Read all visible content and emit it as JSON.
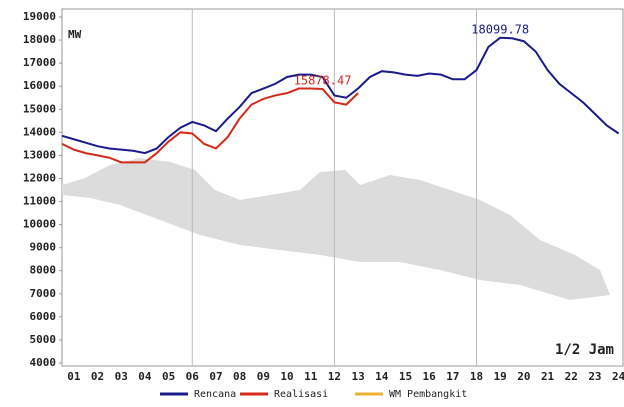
{
  "chart_data": {
    "type": "line",
    "y_label": "MW",
    "x_note": "1/2 Jam",
    "x": [
      0.5,
      1,
      1.5,
      2,
      2.5,
      3,
      3.5,
      4,
      4.5,
      5,
      5.5,
      6,
      6.5,
      7,
      7.5,
      8,
      8.5,
      9,
      9.5,
      10,
      10.5,
      11,
      11.5,
      12,
      12.5,
      13,
      13.5,
      14,
      14.5,
      15,
      15.5,
      16,
      16.5,
      17,
      17.5,
      18,
      18.5,
      19,
      19.5,
      20,
      20.5,
      21,
      21.5,
      22,
      22.5,
      23,
      23.5,
      24
    ],
    "series": [
      {
        "name": "Rencana",
        "color": "#1a1a8c",
        "values": [
          13850,
          13700,
          13550,
          13400,
          13300,
          13250,
          13200,
          13100,
          13300,
          13800,
          14200,
          14450,
          14300,
          14050,
          14600,
          15100,
          15700,
          15900,
          16100,
          16400,
          16500,
          16500,
          16400,
          15600,
          15500,
          15900,
          16400,
          16650,
          16600,
          16500,
          16450,
          16550,
          16500,
          16300,
          16300,
          16700,
          17700,
          18100,
          18080,
          17950,
          17500,
          16700,
          16100,
          15700,
          15300,
          14800,
          14300,
          13950
        ]
      },
      {
        "name": "Realisasi",
        "color": "#d42a1a",
        "values": [
          13500,
          13250,
          13100,
          13000,
          12900,
          12700,
          12700,
          12700,
          13100,
          13600,
          14000,
          13950,
          13500,
          13300,
          13800,
          14600,
          15200,
          15450,
          15600,
          15700,
          15900,
          15900,
          15880,
          15300,
          15200,
          15700,
          null,
          null,
          null,
          null,
          null,
          null,
          null,
          null,
          null,
          null,
          null,
          null,
          null,
          null,
          null,
          null,
          null,
          null,
          null,
          null,
          null,
          null
        ]
      },
      {
        "name": "WM Pembangkit",
        "color": "#f0b030",
        "values": [
          null,
          null,
          null,
          null,
          null,
          null,
          null,
          null,
          null,
          null,
          null,
          null,
          null,
          null,
          null,
          null,
          null,
          null,
          null,
          null,
          null,
          null,
          null,
          null,
          null,
          null,
          null,
          null,
          null,
          null,
          null,
          null,
          null,
          null,
          null,
          null,
          null,
          null,
          null,
          null,
          null,
          null,
          null,
          null,
          null,
          null,
          null,
          null
        ]
      }
    ],
    "annotations": [
      {
        "text": "18099.78",
        "x": 19,
        "y": 18099.78,
        "color": "#1a1a8c"
      },
      {
        "text": "15878.47",
        "x": 11.5,
        "y": 15878.47,
        "color": "#d42a1a"
      }
    ],
    "xlim": [
      0.5,
      24.1
    ],
    "ylim": [
      4000,
      19000
    ],
    "yticks": [
      4000,
      5000,
      6000,
      7000,
      8000,
      9000,
      10000,
      11000,
      12000,
      13000,
      14000,
      15000,
      16000,
      17000,
      18000,
      19000
    ],
    "xticks": [
      {
        "value": 1,
        "label": "01"
      },
      {
        "value": 2,
        "label": "02"
      },
      {
        "value": 3,
        "label": "03"
      },
      {
        "value": 4,
        "label": "04"
      },
      {
        "value": 5,
        "label": "05"
      },
      {
        "value": 6,
        "label": "06"
      },
      {
        "value": 7,
        "label": "07"
      },
      {
        "value": 8,
        "label": "08"
      },
      {
        "value": 9,
        "label": "09"
      },
      10,
      11,
      12,
      13,
      14,
      15,
      16,
      17,
      18,
      19,
      20,
      21,
      22,
      23,
      24
    ],
    "xgrid": [
      6,
      12,
      18
    ]
  }
}
